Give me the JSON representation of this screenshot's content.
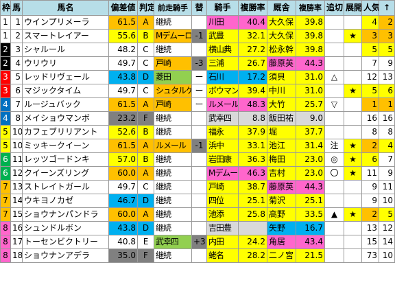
{
  "headers": [
    "枠",
    "馬",
    "馬名",
    "偏差値",
    "判定",
    "前走騎手",
    "替",
    "騎手",
    "複勝率",
    "厩舎",
    "複勝率",
    "追切",
    "展開",
    "人気",
    "↑"
  ],
  "rows": [
    {
      "waku": "1",
      "uma": "1",
      "name": "ウインプリメーラ",
      "dev": "61.5",
      "grade": "A",
      "prev": "継続",
      "chg": "",
      "jockey": "川田",
      "jrate": "40.4",
      "trainer": "大久保",
      "trate": "39.8",
      "oikiri": "",
      "tenkai": "",
      "pop": "4",
      "last": "2"
    },
    {
      "waku": "1",
      "uma": "2",
      "name": "スマートレイアー",
      "dev": "55.6",
      "grade": "B",
      "prev": "Mデムーロ",
      "chg": "-1",
      "jockey": "武豊",
      "jrate": "32.1",
      "trainer": "大久保",
      "trate": "39.8",
      "oikiri": "",
      "tenkai": "★",
      "pop": "3",
      "last": "3"
    },
    {
      "waku": "2",
      "uma": "3",
      "name": "シャルール",
      "dev": "48.2",
      "grade": "C",
      "prev": "継続",
      "chg": "",
      "jockey": "横山典",
      "jrate": "27.2",
      "trainer": "松永幹",
      "trate": "39.8",
      "oikiri": "",
      "tenkai": "",
      "pop": "5",
      "last": "5"
    },
    {
      "waku": "2",
      "uma": "4",
      "name": "ウリウリ",
      "dev": "49.7",
      "grade": "C",
      "prev": "戸崎",
      "chg": "-3",
      "jockey": "三浦",
      "jrate": "26.7",
      "trainer": "藤原英",
      "trate": "44.3",
      "oikiri": "",
      "tenkai": "",
      "pop": "7",
      "last": "9"
    },
    {
      "waku": "3",
      "uma": "5",
      "name": "レッドリヴェール",
      "dev": "43.8",
      "grade": "D",
      "prev": "菱田",
      "chg": "ー",
      "jockey": "石川",
      "jrate": "17.2",
      "trainer": "須貝",
      "trate": "31.0",
      "oikiri": "△",
      "tenkai": "",
      "pop": "12",
      "last": "13"
    },
    {
      "waku": "3",
      "uma": "6",
      "name": "マジックタイム",
      "dev": "49.7",
      "grade": "C",
      "prev": "シュタルケ",
      "chg": "ー",
      "jockey": "ボウマン",
      "jrate": "39.4",
      "trainer": "中川",
      "trate": "31.0",
      "oikiri": "",
      "tenkai": "★",
      "pop": "5",
      "last": "6"
    },
    {
      "waku": "4",
      "uma": "7",
      "name": "ルージュバック",
      "dev": "61.5",
      "grade": "A",
      "prev": "戸崎",
      "chg": "ー",
      "jockey": "ルメール",
      "jrate": "48.3",
      "trainer": "大竹",
      "trate": "25.7",
      "oikiri": "▽",
      "tenkai": "",
      "pop": "1",
      "last": "1"
    },
    {
      "waku": "4",
      "uma": "8",
      "name": "メイショウマンボ",
      "dev": "23.2",
      "grade": "F",
      "prev": "継続",
      "chg": "",
      "jockey": "武幸四",
      "jrate": "8.8",
      "trainer": "飯田祐",
      "trate": "9.0",
      "oikiri": "",
      "tenkai": "",
      "pop": "16",
      "last": "16"
    },
    {
      "waku": "5",
      "uma": "10",
      "name": "カフェブリリアント",
      "dev": "52.6",
      "grade": "B",
      "prev": "継続",
      "chg": "",
      "jockey": "福永",
      "jrate": "37.9",
      "trainer": "堀",
      "trate": "37.7",
      "oikiri": "",
      "tenkai": "",
      "pop": "8",
      "last": "8"
    },
    {
      "waku": "5",
      "uma": "10",
      "name": "ミッキークイーン",
      "dev": "61.5",
      "grade": "A",
      "prev": "ルメール",
      "chg": "-1",
      "jockey": "浜中",
      "jrate": "33.1",
      "trainer": "池江",
      "trate": "31.4",
      "oikiri": "注",
      "tenkai": "★",
      "pop": "2",
      "last": "4"
    },
    {
      "waku": "6",
      "uma": "11",
      "name": "レッツゴードンキ",
      "dev": "57.0",
      "grade": "B",
      "prev": "継続",
      "chg": "",
      "jockey": "岩田康",
      "jrate": "36.3",
      "trainer": "梅田",
      "trate": "23.0",
      "oikiri": "◎",
      "tenkai": "★",
      "pop": "6",
      "last": "7"
    },
    {
      "waku": "6",
      "uma": "12",
      "name": "クイーンズリング",
      "dev": "60.0",
      "grade": "A",
      "prev": "継続",
      "chg": "",
      "jockey": "Mデムーロ",
      "jrate": "46.3",
      "trainer": "吉村",
      "trate": "23.0",
      "oikiri": "〇",
      "tenkai": "★",
      "pop": "11",
      "last": "9"
    },
    {
      "waku": "7",
      "uma": "13",
      "name": "ストレイトガール",
      "dev": "49.7",
      "grade": "C",
      "prev": "継続",
      "chg": "",
      "jockey": "戸崎",
      "jrate": "38.7",
      "trainer": "藤原英",
      "trate": "44.3",
      "oikiri": "",
      "tenkai": "",
      "pop": "9",
      "last": "11"
    },
    {
      "waku": "7",
      "uma": "14",
      "name": "ウキヨノカゼ",
      "dev": "46.7",
      "grade": "D",
      "prev": "継続",
      "chg": "",
      "jockey": "四位",
      "jrate": "25.1",
      "trainer": "菊沢",
      "trate": "25.1",
      "oikiri": "",
      "tenkai": "",
      "pop": "9",
      "last": "10"
    },
    {
      "waku": "7",
      "uma": "15",
      "name": "ショウナンパンドラ",
      "dev": "60.0",
      "grade": "A",
      "prev": "継続",
      "chg": "",
      "jockey": "池添",
      "jrate": "25.8",
      "trainer": "高野",
      "trate": "33.5",
      "oikiri": "▲",
      "tenkai": "★",
      "pop": "2",
      "last": "5"
    },
    {
      "waku": "8",
      "uma": "16",
      "name": "シュンドルボン",
      "dev": "43.8",
      "grade": "D",
      "prev": "継続",
      "chg": "",
      "jockey": "吉田豊",
      "jrate": "",
      "trainer": "矢野",
      "trate": "16.7",
      "oikiri": "",
      "tenkai": "",
      "pop": "13",
      "last": "12"
    },
    {
      "waku": "8",
      "uma": "17",
      "name": "トーセンビクトリー",
      "dev": "40.8",
      "grade": "E",
      "prev": "武幸四",
      "chg": "+3",
      "jockey": "内田",
      "jrate": "24.2",
      "trainer": "角居",
      "trate": "43.4",
      "oikiri": "",
      "tenkai": "",
      "pop": "15",
      "last": "14"
    },
    {
      "waku": "8",
      "uma": "18",
      "name": "ショウナンアデラ",
      "dev": "35.0",
      "grade": "F",
      "prev": "継続",
      "chg": "",
      "jockey": "蛯名",
      "jrate": "28.2",
      "trainer": "二ノ宮",
      "trate": "21.5",
      "oikiri": "",
      "tenkai": "",
      "pop": "73",
      "last": "10"
    }
  ]
}
